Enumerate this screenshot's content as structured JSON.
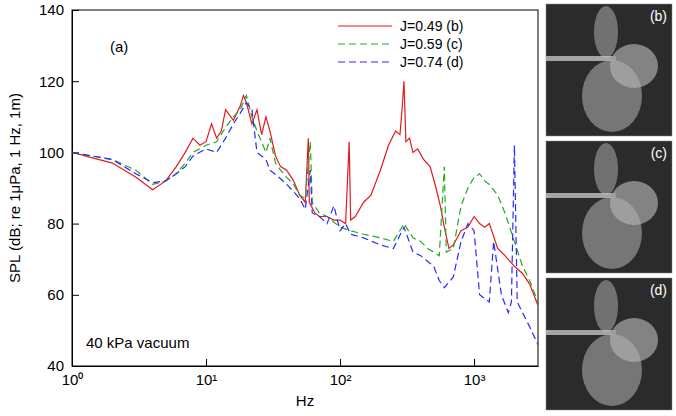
{
  "chart_data": {
    "type": "line",
    "panel_label": "(a)",
    "annotation": "40 kPa vacuum",
    "x_label": "Hz",
    "y_label": "SPL (dB; re 1μPa, 1 Hz, 1m)",
    "log": "x",
    "grid": false,
    "legend": "upper right",
    "xlim": [
      1,
      3000
    ],
    "ylim": [
      40,
      140
    ],
    "xticks": [
      {
        "value": 1,
        "label": "10⁰"
      },
      {
        "value": 10,
        "label": "10¹"
      },
      {
        "value": 100,
        "label": "10²"
      },
      {
        "value": 1000,
        "label": "10³"
      }
    ],
    "yticks": [
      40,
      60,
      80,
      100,
      120,
      140
    ],
    "photo_labels": [
      "(b)",
      "(c)",
      "(d)"
    ],
    "series": [
      {
        "name": "J=0.49 (b)",
        "color": "#e31a1c",
        "line_style": "solid",
        "x": [
          1,
          2,
          3,
          4,
          5,
          6,
          7,
          8,
          9,
          10,
          11,
          12,
          13,
          14,
          16,
          18,
          19,
          20,
          22,
          24,
          26,
          28,
          30,
          33,
          36,
          40,
          45,
          50,
          55,
          58,
          59,
          65,
          70,
          80,
          90,
          100,
          110,
          117,
          120,
          130,
          150,
          170,
          200,
          230,
          260,
          280,
          290,
          300,
          310,
          330,
          350,
          380,
          420,
          470,
          520,
          560,
          600,
          650,
          700,
          800,
          900,
          1000,
          1100,
          1200,
          1300,
          1500,
          1700,
          2000,
          2300,
          2600,
          3000
        ],
        "values": [
          100,
          97,
          93,
          89.5,
          92,
          96,
          100,
          104,
          102,
          103,
          108,
          104,
          106,
          112,
          109,
          113,
          116,
          114,
          108,
          112,
          105,
          110,
          106,
          99,
          96,
          95,
          92,
          88,
          86,
          104,
          86,
          83,
          82,
          82,
          81,
          81,
          80,
          103,
          81,
          82,
          86,
          88,
          95,
          102,
          106,
          105,
          112,
          120,
          103,
          104,
          100,
          101,
          98,
          96,
          90,
          85,
          79,
          73,
          74,
          78,
          79,
          82,
          80,
          79,
          80,
          73,
          71,
          68,
          66,
          63,
          57
        ]
      },
      {
        "name": "J=0.59 (c)",
        "color": "#22aa22",
        "line_style": "dashed",
        "x": [
          1,
          2,
          3,
          4,
          5,
          6,
          7,
          8,
          10,
          12,
          14,
          16,
          18,
          20,
          22,
          24,
          28,
          30,
          33,
          36,
          40,
          45,
          50,
          55,
          60,
          62,
          70,
          80,
          100,
          120,
          150,
          200,
          250,
          300,
          350,
          400,
          450,
          500,
          550,
          600,
          620,
          700,
          800,
          900,
          1000,
          1100,
          1200,
          1300,
          1500,
          1700,
          2000,
          2300,
          2600,
          3000
        ],
        "values": [
          100,
          98,
          95,
          91,
          92,
          94,
          97,
          100,
          102,
          103,
          107,
          110,
          112,
          116,
          110,
          106,
          100,
          104,
          97,
          95,
          93,
          91,
          88,
          87,
          103,
          86,
          83,
          82,
          79,
          78,
          77,
          76,
          75,
          80,
          76,
          75,
          73,
          72,
          71,
          96,
          72,
          73,
          85,
          90,
          93,
          94,
          92,
          91,
          88,
          83,
          75,
          68,
          64,
          58
        ]
      },
      {
        "name": "J=0.74 (d)",
        "color": "#2a2aff",
        "line_style": "dashed",
        "x": [
          1,
          2,
          3,
          4,
          5,
          6,
          7,
          8,
          10,
          12,
          14,
          16,
          18,
          20,
          22,
          24,
          28,
          30,
          35,
          40,
          45,
          50,
          55,
          60,
          62,
          70,
          80,
          90,
          100,
          110,
          120,
          150,
          200,
          250,
          300,
          350,
          400,
          500,
          550,
          600,
          700,
          800,
          900,
          1000,
          1100,
          1300,
          1400,
          1600,
          1800,
          1900,
          2000,
          2100,
          2300,
          2600,
          3000
        ],
        "values": [
          100,
          98,
          94,
          91.5,
          92,
          94,
          96,
          99,
          101,
          100,
          104,
          108,
          111,
          114,
          112,
          100,
          98,
          95,
          93,
          91,
          89,
          87,
          84,
          95,
          83,
          82,
          80,
          85,
          78,
          80,
          77,
          76,
          74,
          73,
          79,
          72,
          71,
          68,
          64,
          62,
          65,
          75,
          80,
          78,
          60,
          58,
          75,
          60,
          55,
          58,
          102,
          58,
          55,
          51,
          46
        ]
      }
    ]
  }
}
